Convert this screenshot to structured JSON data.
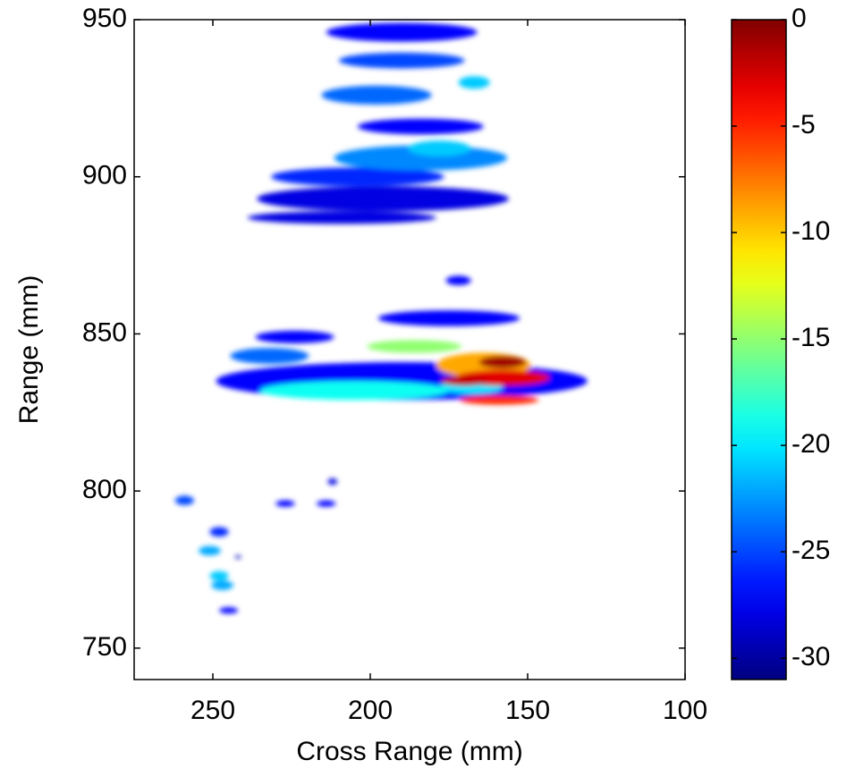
{
  "chart_data": {
    "type": "heatmap",
    "xlabel": "Cross Range (mm)",
    "ylabel": "Range (mm)",
    "xlim": [
      275,
      100
    ],
    "xticks": [
      250,
      200,
      150,
      100
    ],
    "ylim": [
      740,
      950
    ],
    "yticks": [
      750,
      800,
      850,
      900,
      950
    ],
    "colormap": "jet",
    "clim": [
      -31,
      0
    ],
    "cticks": [
      0,
      -5,
      -10,
      -15,
      -20,
      -25,
      -30
    ],
    "x": [
      242,
      212,
      196,
      209,
      190,
      224,
      175,
      184,
      190,
      172,
      227,
      227,
      214,
      245,
      204,
      248,
      259,
      190,
      232,
      198,
      184,
      247,
      251,
      248,
      178,
      167,
      168,
      205,
      186,
      164,
      159,
      158,
      170,
      158
    ],
    "y": [
      779,
      803,
      893,
      887,
      835,
      849,
      855,
      916,
      946,
      867,
      796,
      796,
      796,
      762,
      900,
      787,
      797,
      937,
      843,
      926,
      906,
      770,
      781,
      773,
      909,
      930,
      833,
      832,
      846,
      840,
      829,
      836,
      835,
      841
    ],
    "xspread": [
      2,
      3,
      80,
      60,
      118,
      25,
      45,
      40,
      48,
      8,
      6,
      6,
      6,
      6,
      55,
      6,
      6,
      40,
      25,
      35,
      55,
      7,
      7,
      6,
      20,
      10,
      20,
      60,
      30,
      30,
      25,
      30,
      15,
      15
    ],
    "yspread": [
      1,
      2,
      8,
      4,
      12,
      4,
      5,
      5,
      6,
      3,
      2,
      2,
      2,
      2,
      6,
      3,
      3,
      5,
      5,
      6,
      8,
      3,
      3,
      3,
      5,
      4,
      4,
      6,
      4,
      8,
      3,
      5,
      3,
      4
    ],
    "values": [
      -29,
      -28,
      -28,
      -28,
      -27,
      -27,
      -27,
      -27,
      -27,
      -27,
      -27,
      -27,
      -27,
      -27,
      -26,
      -26,
      -25,
      -25,
      -24,
      -24,
      -23,
      -22,
      -22,
      -21,
      -21,
      -21,
      -20,
      -19,
      -15,
      -9,
      -5,
      -3,
      -2,
      -1
    ]
  }
}
